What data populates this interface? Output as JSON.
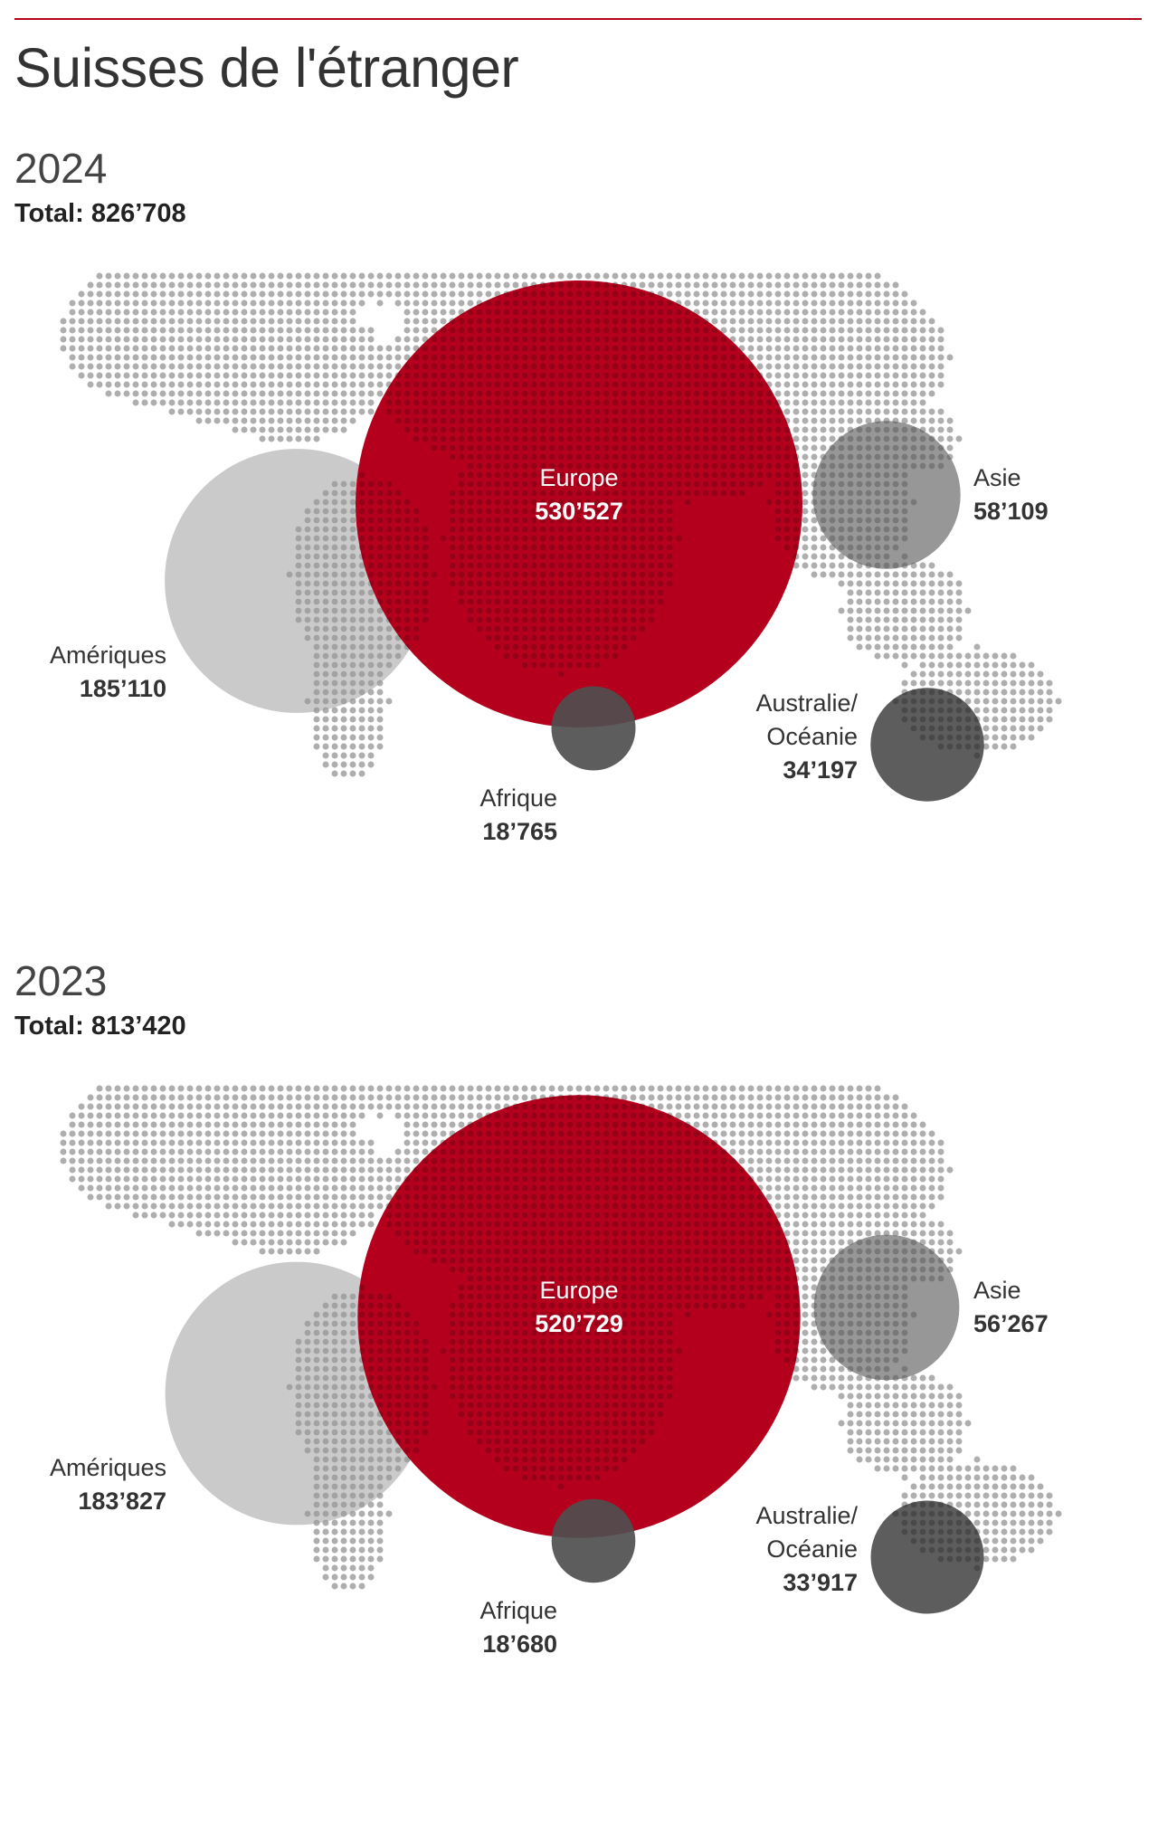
{
  "title": "Suisses de l'étranger",
  "colors": {
    "accent": "#b5001d",
    "europe": "#b5001d",
    "ameriques": "#c6c6c6",
    "asie": "#8e8e8e",
    "afrique": "#4f4f4f",
    "oceanie": "#4f4f4f",
    "map_dots": "#d6d6d6"
  },
  "chart_data": [
    {
      "type": "bubble-map",
      "year": "2024",
      "total_label": "Total: 826’708",
      "total": 826708,
      "regions": [
        {
          "key": "europe",
          "name": "Europe",
          "value": 530527,
          "value_label": "530’527"
        },
        {
          "key": "ameriques",
          "name": "Amériques",
          "value": 185110,
          "value_label": "185’110"
        },
        {
          "key": "asie",
          "name": "Asie",
          "value": 58109,
          "value_label": "58’109"
        },
        {
          "key": "oceanie",
          "name": [
            "Australie/",
            "Océanie"
          ],
          "value": 34197,
          "value_label": "34’197"
        },
        {
          "key": "afrique",
          "name": "Afrique",
          "value": 18765,
          "value_label": "18’765"
        }
      ]
    },
    {
      "type": "bubble-map",
      "year": "2023",
      "total_label": "Total: 813’420",
      "total": 813420,
      "regions": [
        {
          "key": "europe",
          "name": "Europe",
          "value": 520729,
          "value_label": "520’729"
        },
        {
          "key": "ameriques",
          "name": "Amériques",
          "value": 183827,
          "value_label": "183’827"
        },
        {
          "key": "asie",
          "name": "Asie",
          "value": 56267,
          "value_label": "56’267"
        },
        {
          "key": "oceanie",
          "name": [
            "Australie/",
            "Océanie"
          ],
          "value": 33917,
          "value_label": "33’917"
        },
        {
          "key": "afrique",
          "name": "Afrique",
          "value": 18680,
          "value_label": "18’680"
        }
      ]
    }
  ]
}
